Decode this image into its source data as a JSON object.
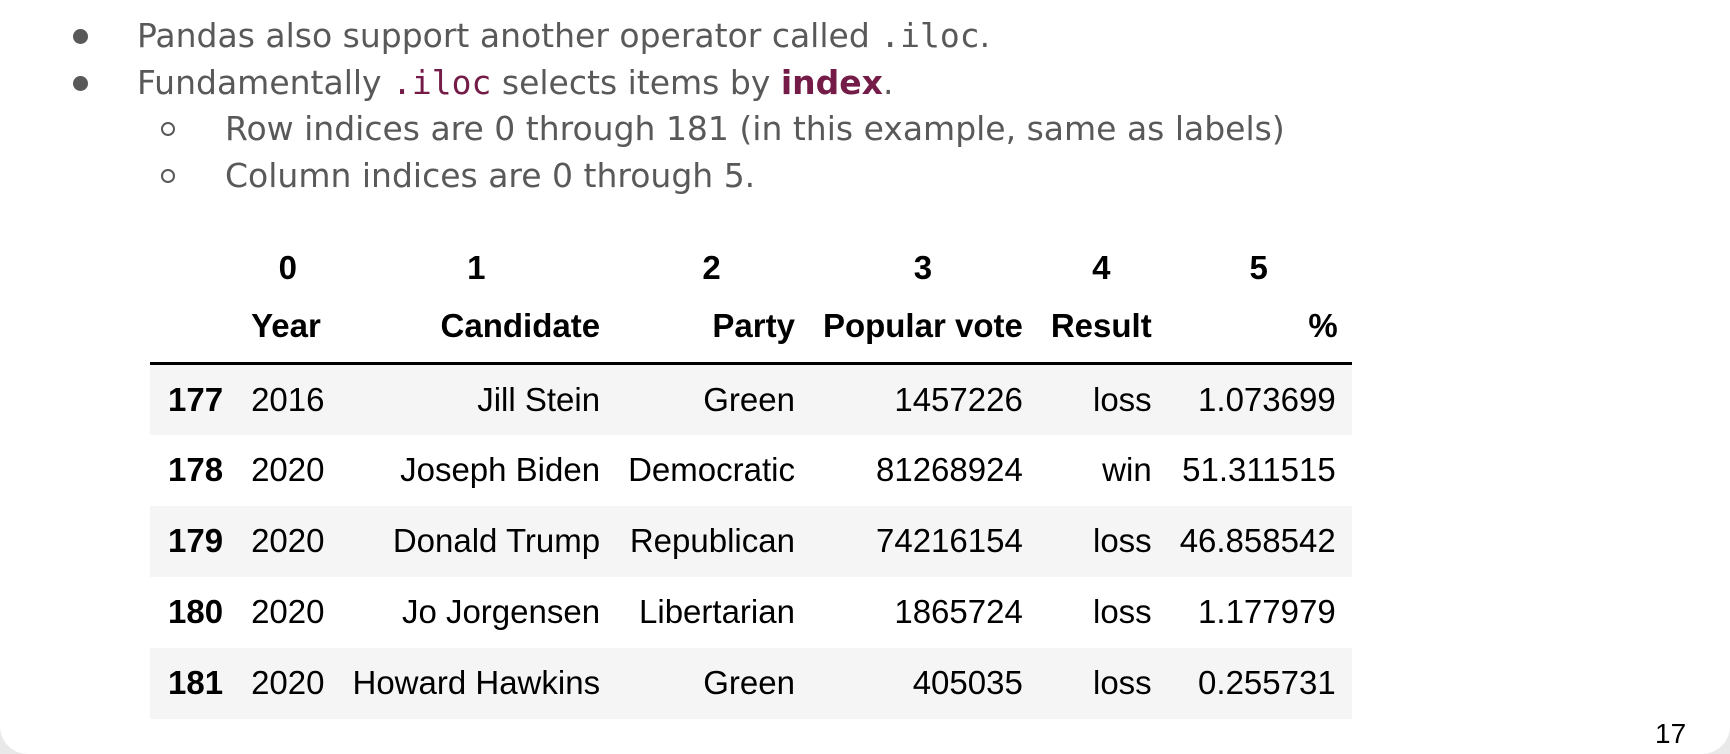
{
  "bullets": [
    {
      "pre": "Pandas also support another operator called ",
      "code": ".iloc",
      "post": "."
    },
    {
      "pre": "Fundamentally ",
      "code": ".iloc",
      "mid": " selects items by ",
      "emph": "index",
      "post": "."
    }
  ],
  "sub_bullets": [
    "Row indices are 0 through 181 (in this example, same as labels)",
    "Column indices are 0 through 5."
  ],
  "table": {
    "positions": [
      "0",
      "1",
      "2",
      "3",
      "4",
      "5"
    ],
    "columns": [
      "Year",
      "Candidate",
      "Party",
      "Popular vote",
      "Result",
      "%"
    ],
    "rows": [
      {
        "index": "177",
        "cells": [
          "2016",
          "Jill Stein",
          "Green",
          "1457226",
          "loss",
          "1.073699"
        ]
      },
      {
        "index": "178",
        "cells": [
          "2020",
          "Joseph Biden",
          "Democratic",
          "81268924",
          "win",
          "51.311515"
        ]
      },
      {
        "index": "179",
        "cells": [
          "2020",
          "Donald Trump",
          "Republican",
          "74216154",
          "loss",
          "46.858542"
        ]
      },
      {
        "index": "180",
        "cells": [
          "2020",
          "Jo Jorgensen",
          "Libertarian",
          "1865724",
          "loss",
          "1.177979"
        ]
      },
      {
        "index": "181",
        "cells": [
          "2020",
          "Howard Hawkins",
          "Green",
          "405035",
          "loss",
          "0.255731"
        ]
      }
    ]
  },
  "page_number": "17",
  "colors": {
    "text_gray": "#595959",
    "accent_purple": "#741b47",
    "row_stripe": "#f5f5f5"
  }
}
